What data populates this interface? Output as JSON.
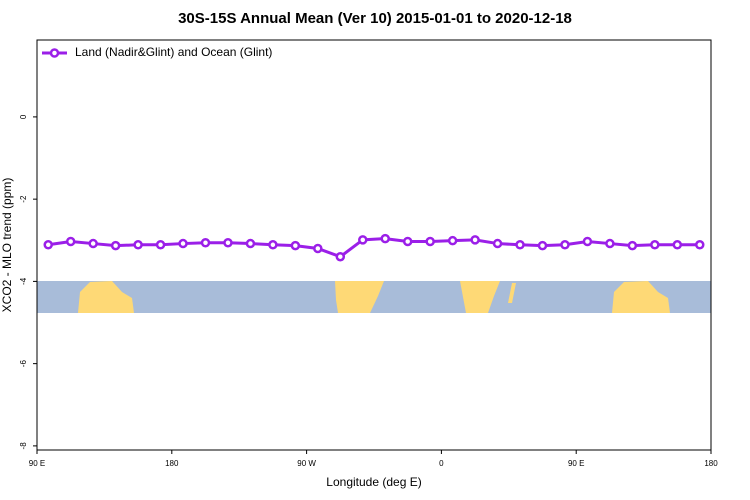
{
  "chart_data": {
    "type": "line",
    "title": "30S-15S Annual Mean (Ver 10)   2015-01-01 to 2020-12-18",
    "x_label": "Longitude (deg E)",
    "y_label": "XCO2 - MLO trend (ppm)",
    "x": [
      97.5,
      112.5,
      127.5,
      142.5,
      157.5,
      172.5,
      187.5,
      202.5,
      217.5,
      232.5,
      247.5,
      262.5,
      277.5,
      292.5,
      307.5,
      322.5,
      337.5,
      352.5,
      367.5,
      382.5,
      397.5,
      412.5,
      427.5,
      442.5,
      457.5,
      472.5,
      487.5,
      502.5,
      517.5,
      532.5
    ],
    "series": [
      {
        "name": "Land (Nadir&Glint) and Ocean (Glint)",
        "color": "#9b1fe8",
        "values": [
          -3.11,
          -3.03,
          -3.08,
          -3.13,
          -3.11,
          -3.11,
          -3.08,
          -3.06,
          -3.06,
          -3.08,
          -3.11,
          -3.13,
          -3.2,
          -3.4,
          -2.99,
          -2.96,
          -3.03,
          -3.03,
          -3.01,
          -2.99,
          -3.08,
          -3.11,
          -3.13,
          -3.11,
          -3.03,
          -3.08,
          -3.13,
          -3.11,
          -3.11,
          -3.11
        ]
      }
    ],
    "xlim": [
      90,
      540
    ],
    "xticks": [
      {
        "value": 90,
        "label": "90 E"
      },
      180,
      {
        "value": 270,
        "label": "90 W"
      },
      {
        "value": 360,
        "label": "0"
      },
      {
        "value": 450,
        "label": "90 E"
      },
      {
        "value": 540,
        "label": "180"
      }
    ],
    "ylim": [
      -8.1,
      1.87
    ],
    "yticks": [
      0,
      -2,
      -4,
      -6,
      -8
    ],
    "legend": "top-left"
  }
}
